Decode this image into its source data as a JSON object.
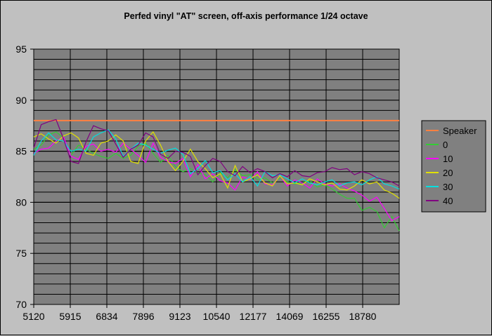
{
  "chart_data": {
    "type": "line",
    "title": "Perfed vinyl \"AT\" screen, off-axis performance 1/24 octave",
    "xlabel": "",
    "ylabel": "",
    "ylim": [
      70,
      95
    ],
    "yticks": [
      70,
      75,
      80,
      85,
      90,
      95
    ],
    "xtick_labels": [
      "5120",
      "5915",
      "6834",
      "7896",
      "9123",
      "10540",
      "12177",
      "14069",
      "16255",
      "18780"
    ],
    "grid": true,
    "legend_position": "right",
    "colors": {
      "plot_bg": "#808080",
      "grid": "#000000",
      "Speaker": "#ff8040",
      "0": "#33cc33",
      "10": "#ff00ff",
      "20": "#e0e000",
      "30": "#00e0e0",
      "40": "#800080"
    },
    "series": [
      {
        "name": "Speaker",
        "values": [
          88.0,
          88.0,
          88.0,
          88.0,
          88.0,
          88.0,
          88.0,
          88.0,
          88.0,
          88.0,
          88.0,
          88.0,
          88.0,
          88.0,
          88.0,
          88.0,
          88.0,
          88.0,
          88.0,
          88.0,
          88.0,
          88.0,
          88.0,
          88.0,
          88.0,
          88.0,
          88.0,
          88.0,
          88.0,
          88.0,
          88.0,
          88.0,
          88.0,
          88.0,
          88.0,
          88.0,
          88.0,
          88.0,
          88.0,
          88.0,
          88.0,
          88.0,
          88.0,
          88.0,
          88.0,
          88.0,
          88.0,
          88.0,
          88.0,
          88.0
        ]
      },
      {
        "name": "0",
        "values": [
          85.2,
          85.6,
          86.6,
          86.9,
          86.3,
          84.6,
          85.6,
          85.2,
          84.8,
          84.5,
          84.3,
          84.8,
          84.3,
          84.6,
          85.5,
          85.8,
          84.8,
          83.9,
          84.6,
          83.5,
          83.0,
          83.3,
          82.9,
          82.7,
          82.0,
          82.9,
          82.4,
          83.2,
          82.6,
          82.7,
          82.2,
          82.4,
          81.9,
          82.4,
          82.0,
          81.8,
          81.9,
          82.1,
          81.5,
          81.7,
          81.3,
          80.8,
          80.4,
          80.4,
          79.2,
          79.5,
          79.1,
          77.5,
          78.6,
          77.2
        ]
      },
      {
        "name": "10",
        "values": [
          84.8,
          85.2,
          85.3,
          86.0,
          86.4,
          84.5,
          84.2,
          85.5,
          85.7,
          85.0,
          85.2,
          84.9,
          85.8,
          85.2,
          84.6,
          83.9,
          85.8,
          84.4,
          84.0,
          83.8,
          84.3,
          82.5,
          83.7,
          82.3,
          82.8,
          82.1,
          81.9,
          81.2,
          82.5,
          82.2,
          83.0,
          81.8,
          81.7,
          82.6,
          81.6,
          82.2,
          81.9,
          81.4,
          82.3,
          81.8,
          81.6,
          81.8,
          81.4,
          81.1,
          80.7,
          80.1,
          80.5,
          79.4,
          78.2,
          78.6
        ]
      },
      {
        "name": "20",
        "values": [
          86.4,
          86.7,
          86.2,
          85.8,
          86.5,
          86.8,
          86.3,
          84.8,
          84.6,
          85.8,
          86.0,
          86.6,
          86.0,
          84.0,
          83.8,
          86.0,
          86.9,
          85.6,
          84.0,
          83.1,
          84.0,
          85.2,
          84.0,
          83.3,
          82.4,
          82.8,
          81.4,
          83.6,
          82.0,
          82.3,
          82.7,
          81.9,
          81.6,
          82.6,
          81.8,
          81.9,
          81.7,
          82.3,
          82.0,
          81.7,
          81.9,
          81.3,
          81.2,
          81.6,
          82.2,
          81.8,
          82.0,
          81.2,
          80.9,
          80.4
        ]
      },
      {
        "name": "30",
        "values": [
          84.6,
          86.0,
          86.8,
          86.1,
          86.0,
          85.0,
          85.2,
          85.0,
          86.4,
          86.8,
          87.1,
          86.2,
          84.5,
          85.2,
          85.8,
          85.6,
          85.2,
          84.8,
          85.1,
          85.3,
          84.7,
          82.8,
          83.3,
          84.1,
          82.9,
          83.1,
          82.2,
          82.8,
          82.0,
          82.5,
          81.6,
          83.0,
          82.6,
          82.7,
          82.3,
          81.9,
          82.3,
          81.9,
          81.7,
          82.0,
          82.2,
          81.6,
          81.9,
          82.0,
          81.7,
          82.2,
          82.5,
          81.8,
          81.6,
          81.3
        ]
      },
      {
        "name": "40",
        "values": [
          85.3,
          87.6,
          87.9,
          88.1,
          86.2,
          84.0,
          83.8,
          85.9,
          87.5,
          87.2,
          87.0,
          85.7,
          84.4,
          85.2,
          85.6,
          86.8,
          86.4,
          84.7,
          84.3,
          85.0,
          84.9,
          84.5,
          82.7,
          83.6,
          84.3,
          84.0,
          83.0,
          82.6,
          83.5,
          82.9,
          83.3,
          83.0,
          82.4,
          82.8,
          82.5,
          83.1,
          82.6,
          82.5,
          82.9,
          83.0,
          83.4,
          83.2,
          83.3,
          82.7,
          83.0,
          82.8,
          82.4,
          82.2,
          82.0,
          81.6
        ]
      }
    ]
  }
}
